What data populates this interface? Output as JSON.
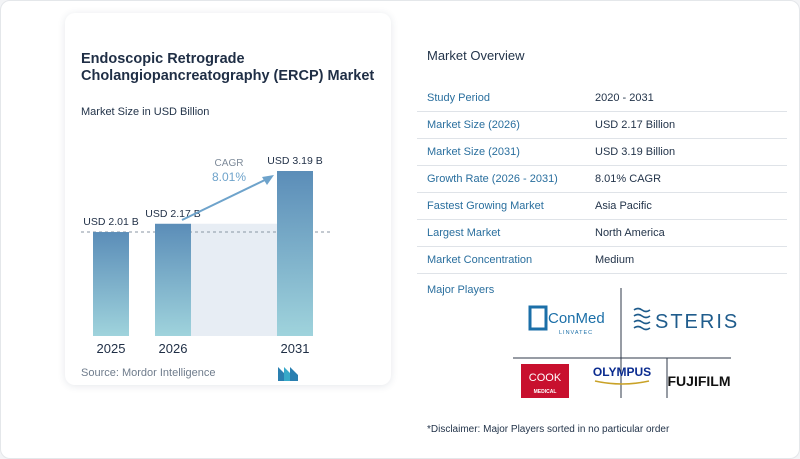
{
  "chart_card": {
    "title": "Endoscopic Retrograde Cholangiopancreatography (ERCP) Market",
    "subtitle": "Market Size in USD Billion",
    "source": "Source:  Mordor Intelligence",
    "cagr_label": "CAGR",
    "cagr_value": "8.01%"
  },
  "chart_data": {
    "type": "bar",
    "title": "Endoscopic Retrograde Cholangiopancreatography (ERCP) Market",
    "ylabel": "Market Size in USD Billion",
    "categories": [
      "2025",
      "2026",
      "2031"
    ],
    "values": [
      2.01,
      2.17,
      3.19
    ],
    "data_labels": [
      "USD 2.01 B",
      "USD 2.17 B",
      "USD 3.19 B"
    ],
    "ylim": [
      0,
      3.5
    ],
    "grid": false,
    "colors": {
      "bar_top": "#5b8db8",
      "bar_bottom": "#9fd3dc",
      "shade": "#e7edf4",
      "arrow": "#6ea3cb",
      "dashed": "#8a96a3"
    }
  },
  "overview": {
    "title": "Market Overview",
    "rows": [
      {
        "label": "Study Period",
        "value": "2020 - 2031"
      },
      {
        "label": "Market Size (2026)",
        "value": "USD 2.17 Billion"
      },
      {
        "label": "Market Size (2031)",
        "value": "USD 3.19 Billion"
      },
      {
        "label": "Growth Rate (2026 - 2031)",
        "value": "8.01% CAGR"
      },
      {
        "label": "Fastest Growing Market",
        "value": "Asia Pacific"
      },
      {
        "label": "Largest Market",
        "value": "North America"
      },
      {
        "label": "Market Concentration",
        "value": "Medium"
      }
    ],
    "players_label": "Major Players",
    "players": [
      {
        "name": "ConMed",
        "sub": "LINVATEC"
      },
      {
        "name": "STERIS"
      },
      {
        "name": "COOK",
        "sub": "MEDICAL"
      },
      {
        "name": "OLYMPUS"
      },
      {
        "name": "FUJIFILM"
      }
    ],
    "disclaimer": "*Disclaimer: Major Players sorted in no particular order"
  }
}
